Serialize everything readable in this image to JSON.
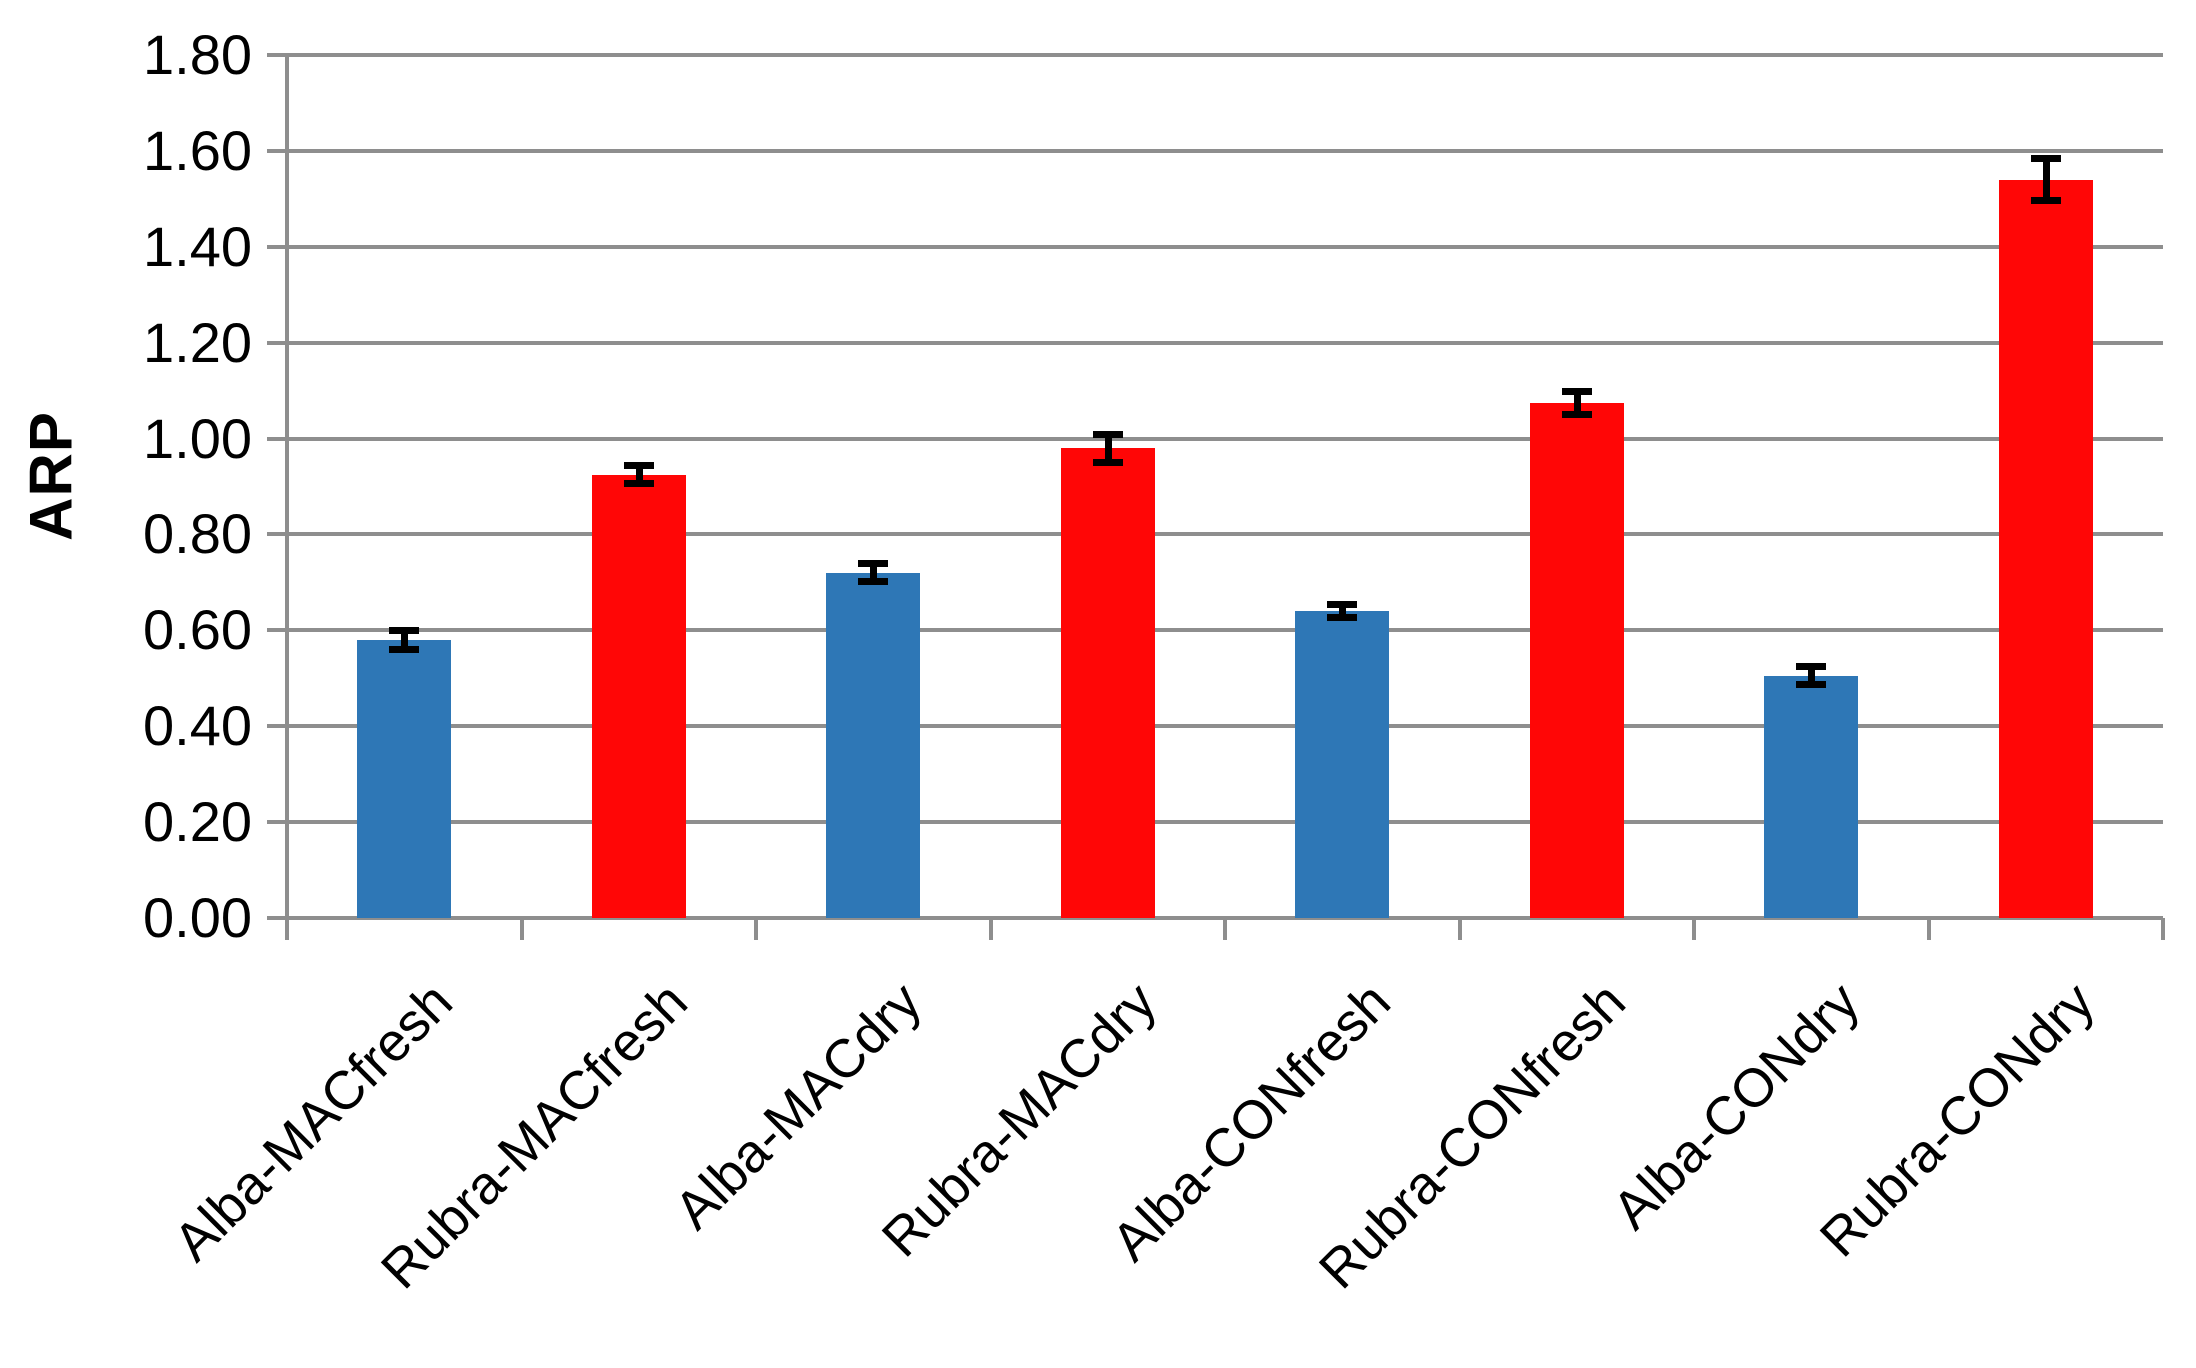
{
  "chart_data": {
    "type": "bar",
    "title": "",
    "xlabel": "",
    "ylabel": "ARP",
    "categories": [
      "Alba-MACfresh",
      "Rubra-MACfresh",
      "Alba-MACdry",
      "Rubra-MACdry",
      "Alba-CONfresh",
      "Rubra-CONfresh",
      "Alba-CONdry",
      "Rubra-CONdry"
    ],
    "values": [
      0.58,
      0.925,
      0.72,
      0.98,
      0.64,
      1.075,
      0.505,
      1.54
    ],
    "error_bars": [
      0.02,
      0.02,
      0.02,
      0.03,
      0.015,
      0.025,
      0.02,
      0.045
    ],
    "groups": [
      "Alba",
      "Rubra",
      "Alba",
      "Rubra",
      "Alba",
      "Rubra",
      "Alba",
      "Rubra"
    ],
    "group_colors": {
      "Alba": "#2E77B6",
      "Rubra": "#FF0606"
    },
    "ylim": [
      0.0,
      1.8
    ],
    "ytick_interval": 0.2,
    "ytick_labels": [
      "0.00",
      "0.20",
      "0.40",
      "0.60",
      "0.80",
      "1.00",
      "1.20",
      "1.40",
      "1.60",
      "1.80"
    ],
    "grid": "horizontal",
    "legend": "none",
    "x_label_rotation_deg": 45,
    "colors": {
      "gridline": "#8E8E8E",
      "axis": "#8E8E8E",
      "error_bar": "#000000",
      "text": "#000000",
      "background": "#FFFFFF"
    }
  }
}
